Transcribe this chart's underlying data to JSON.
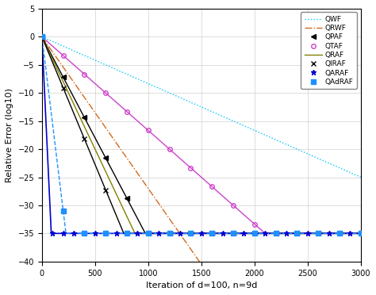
{
  "xlabel": "Iteration of d=100, n=9d",
  "ylabel": "Relative Error (log10)",
  "xlim": [
    0,
    3000
  ],
  "ylim": [
    -40,
    5
  ],
  "yticks": [
    5,
    0,
    -5,
    -10,
    -15,
    -20,
    -25,
    -30,
    -35,
    -40
  ],
  "xticks": [
    0,
    500,
    1000,
    1500,
    2000,
    2500,
    3000
  ],
  "floor": -35,
  "series": [
    {
      "name": "QWF",
      "color": "#00C8FF",
      "ls": "dotted",
      "marker": "",
      "lw": 1.0,
      "slope": -0.00833,
      "floor_override": -100,
      "marker_every": 0
    },
    {
      "name": "QRWF",
      "color": "#D2691E",
      "ls": "dashdot",
      "marker": "",
      "lw": 1.0,
      "slope": -0.027,
      "floor_override": -100,
      "marker_every": 0
    },
    {
      "name": "QPAF",
      "color": "#000000",
      "ls": "solid",
      "marker": "<",
      "lw": 1.0,
      "slope": -0.036,
      "floor_override": -35,
      "marker_every": 200
    },
    {
      "name": "QTAF",
      "color": "#CC44CC",
      "ls": "solid",
      "marker": "o",
      "lw": 1.0,
      "slope": -0.01667,
      "floor_override": -35,
      "marker_every": 200
    },
    {
      "name": "QRAF",
      "color": "#808000",
      "ls": "solid",
      "marker": "",
      "lw": 1.0,
      "slope": -0.04,
      "floor_override": -35,
      "marker_every": 0
    },
    {
      "name": "QIRAF",
      "color": "#000000",
      "ls": "solid",
      "marker": "x",
      "lw": 1.0,
      "slope": -0.0455,
      "floor_override": -35,
      "marker_every": 200
    },
    {
      "name": "QARAF",
      "color": "#0000CC",
      "ls": "solid",
      "marker": "*",
      "lw": 1.2,
      "fast": true,
      "fast_slope": -0.4,
      "fast_iter": 240,
      "floor_override": -35,
      "marker_every": 100
    },
    {
      "name": "QAdRAF",
      "color": "#1E90FF",
      "ls": "dashed",
      "marker": "s",
      "lw": 1.0,
      "fast": true,
      "fast_slope": -0.155,
      "fast_iter": 630,
      "floor_override": -35,
      "marker_every": 200
    }
  ]
}
